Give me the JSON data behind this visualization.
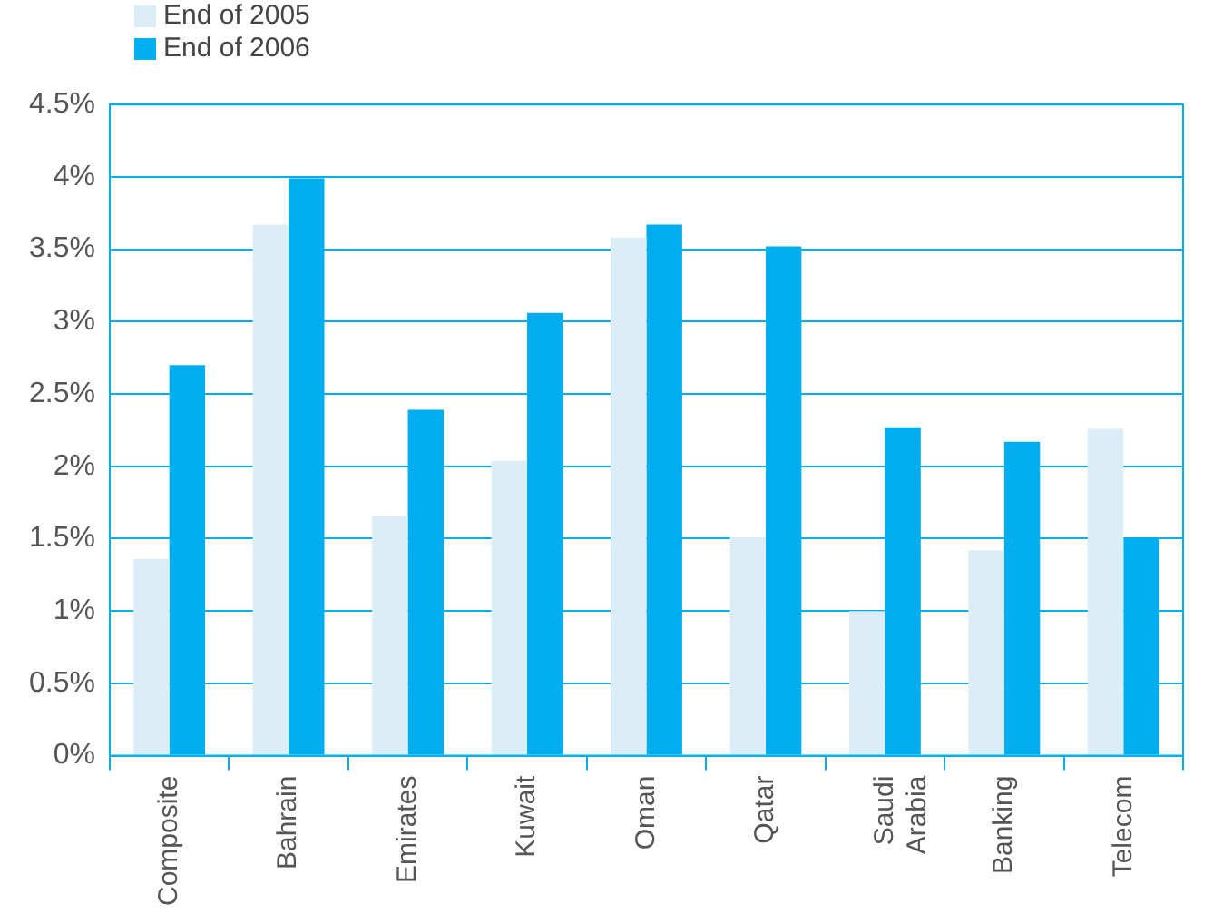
{
  "chart_data": {
    "type": "bar",
    "categories": [
      "Composite",
      "Bahrain",
      "Emirates",
      "Kuwait",
      "Oman",
      "Qatar",
      "Saudi Arabia",
      "Banking",
      "Telecom"
    ],
    "series": [
      {
        "name": "End of 2005",
        "color": "#dbeef7",
        "values": [
          1.36,
          3.67,
          1.66,
          2.04,
          3.58,
          1.51,
          1.0,
          1.42,
          2.26
        ]
      },
      {
        "name": "End of 2006",
        "color": "#00aeef",
        "values": [
          2.7,
          3.99,
          2.39,
          3.06,
          3.67,
          3.52,
          2.27,
          2.17,
          1.51
        ]
      }
    ],
    "ylim": [
      0,
      4.5
    ],
    "yticks": [
      {
        "value": 0,
        "label": "0%"
      },
      {
        "value": 0.5,
        "label": "0.5%"
      },
      {
        "value": 1,
        "label": "1%"
      },
      {
        "value": 1.5,
        "label": "1.5%"
      },
      {
        "value": 2,
        "label": "2%"
      },
      {
        "value": 2.5,
        "label": "2.5%"
      },
      {
        "value": 3,
        "label": "3%"
      },
      {
        "value": 3.5,
        "label": "3.5%"
      },
      {
        "value": 4,
        "label": "4%"
      },
      {
        "value": 4.5,
        "label": "4.5%"
      }
    ],
    "grid": "y",
    "legend": "top left"
  }
}
